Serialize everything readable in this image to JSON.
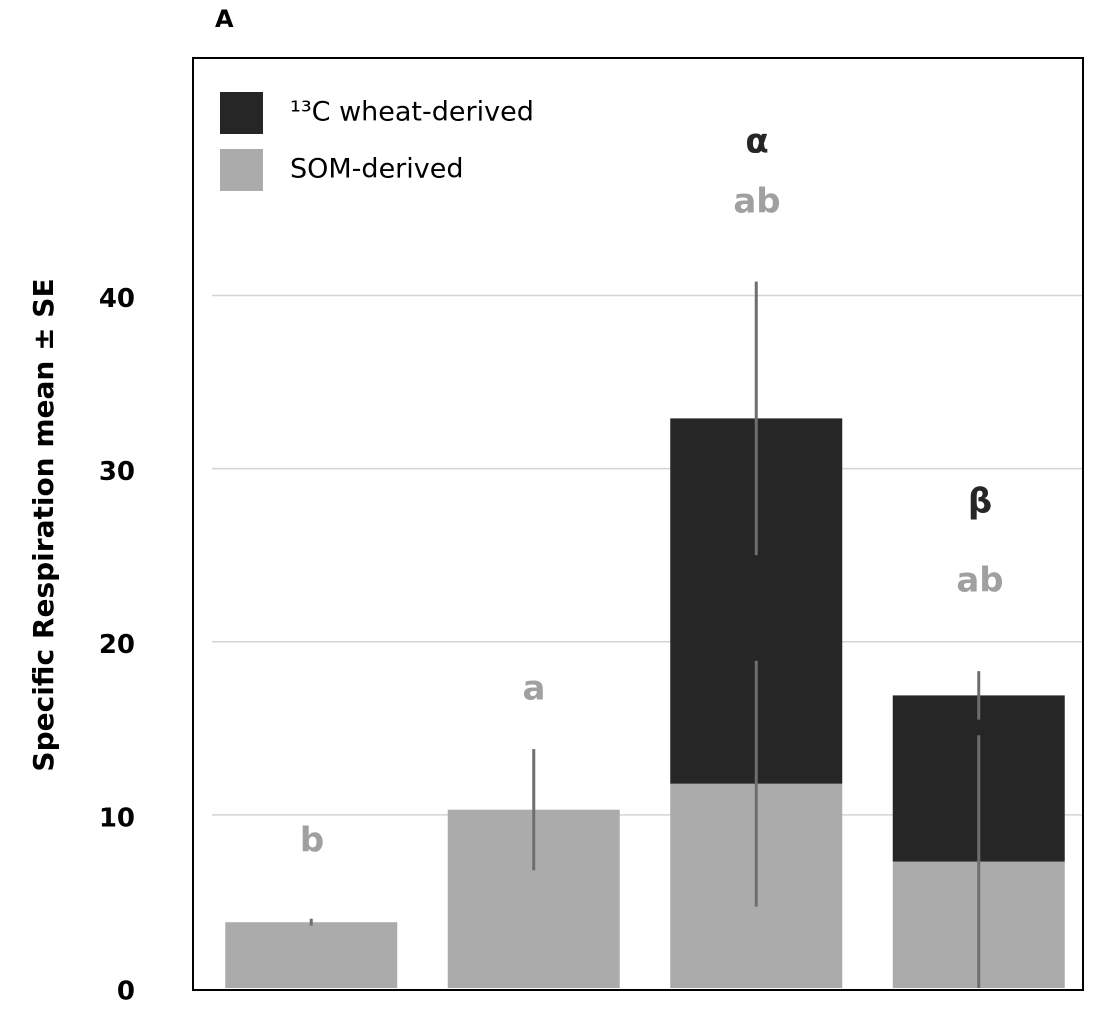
{
  "chart_data": {
    "type": "stacked-bar",
    "panel_label": "A",
    "y_label": "Specific Respiration mean ± SE",
    "categories": [
      null,
      null,
      null,
      null
    ],
    "series": [
      {
        "name": "SOM-derived",
        "color": "#ababab",
        "values": [
          3.8,
          10.3,
          11.8,
          7.3
        ],
        "errors": [
          0.2,
          3.5,
          7.1,
          7.3
        ]
      },
      {
        "name": "¹³C wheat-derived",
        "color": "#262626",
        "values": [
          null,
          null,
          21.1,
          9.6
        ],
        "errors": [
          null,
          null,
          7.9,
          1.4
        ]
      }
    ],
    "annotations": [
      {
        "text": "b",
        "color": "#a0a0a0"
      },
      {
        "text": "a",
        "color": "#a0a0a0"
      },
      {
        "text": "α",
        "color": "#262626"
      },
      {
        "text": "ab",
        "color": "#a0a0a0"
      },
      {
        "text": "β",
        "color": "#262626"
      },
      {
        "text": "ab",
        "color": "#a0a0a0"
      }
    ],
    "ylim": [
      0,
      53.6
    ],
    "yticks": [
      0,
      10,
      20,
      30,
      40
    ],
    "grid": true,
    "legend": "upper left"
  }
}
